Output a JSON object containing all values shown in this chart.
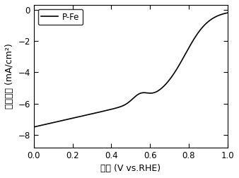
{
  "title": "",
  "xlabel": "电势 (V vs.RHE)",
  "ylabel": "电流密度 (mA/cm²)",
  "xlim": [
    0.0,
    1.0
  ],
  "ylim": [
    -8.8,
    0.3
  ],
  "yticks": [
    0,
    -2,
    -4,
    -6,
    -8
  ],
  "xticks": [
    0.0,
    0.2,
    0.4,
    0.6,
    0.8,
    1.0
  ],
  "legend_label": "P-Fe",
  "line_color": "#000000",
  "bg_color": "#ffffff"
}
